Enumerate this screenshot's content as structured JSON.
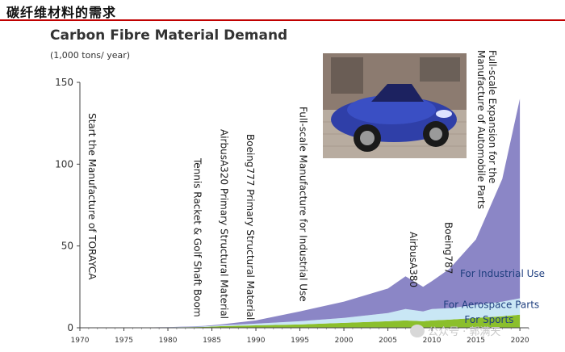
{
  "header": {
    "title": "碳纤维材料的需求"
  },
  "watermark": {
    "text": "公众号 · 郭满天",
    "icon": "wechat-icon"
  },
  "photo": {
    "subject": "blue-roadster-car"
  },
  "chart_data": {
    "type": "area",
    "title": "Carbon Fibre Material Demand",
    "units": "(1,000 tons/ year)",
    "x": [
      1970,
      1975,
      1980,
      1984,
      1986,
      1990,
      1995,
      2000,
      2005,
      2007,
      2009,
      2010,
      2012,
      2015,
      2018,
      2020
    ],
    "series": [
      {
        "name": "For Sports",
        "color": "#8bbf2c",
        "values": [
          0,
          0,
          0.2,
          0.5,
          1,
          1.5,
          2,
          3,
          4,
          4.5,
          4,
          4.5,
          5,
          6,
          7,
          8
        ]
      },
      {
        "name": "For Aerospace Parts",
        "color": "#c9e7f5",
        "values": [
          0,
          0,
          0.1,
          0.3,
          0.5,
          1,
          2,
          3,
          5,
          7,
          6,
          7,
          7,
          8,
          9,
          10
        ]
      },
      {
        "name": "For Industrial Use",
        "color": "#8b86c6",
        "values": [
          0,
          0,
          0.1,
          0.3,
          0.5,
          2,
          6,
          10,
          15,
          20,
          15,
          17,
          24,
          40,
          75,
          122
        ]
      }
    ],
    "legend": [
      {
        "label": "For Industrial Use",
        "color": "#1f3f7f",
        "x": 2013.2,
        "y": 33
      },
      {
        "label": "For Aerospace Parts",
        "color": "#1f3f7f",
        "x": 2011.3,
        "y": 14
      },
      {
        "label": "For Sports",
        "color": "#1f3f7f",
        "x": 2013.7,
        "y": 5
      }
    ],
    "annotations": [
      {
        "text": "Start the Manufacture of TORAYCA",
        "x": 1971
      },
      {
        "text": "Tennis Racket & Golf Shaft Boom",
        "x": 1983
      },
      {
        "text": "AirbusA320 Primary Structural Material",
        "x": 1986
      },
      {
        "text": "Boeing777 Primary Structural Material",
        "x": 1989
      },
      {
        "text": "Full-scale Manufacture for Industrial Use",
        "x": 1995
      },
      {
        "text": "AirbusA380",
        "x": 2007.5
      },
      {
        "text": "Boeing787",
        "x": 2011.5
      },
      {
        "text": "Full-scale Expansion for the Manufacture of Automobile Parts",
        "x": 2016.5
      }
    ],
    "xticks": [
      1970,
      1975,
      1980,
      1985,
      1990,
      1995,
      2000,
      2005,
      2010,
      2015,
      2020
    ],
    "yticks": [
      0,
      50,
      100,
      150
    ],
    "xlim": [
      1970,
      2021
    ],
    "ylim": [
      0,
      150
    ]
  }
}
